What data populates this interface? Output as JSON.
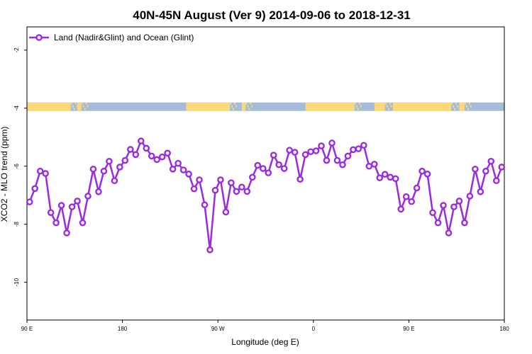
{
  "chart_data": {
    "type": "line",
    "title": "40N-45N August (Ver 9)   2014-09-06 to 2018-12-31",
    "xlabel": "Longitude (deg E)",
    "ylabel": "XCO2 - MLO trend (ppm)",
    "xlim": [
      0,
      360
    ],
    "ylim": [
      -11.3,
      -1.2
    ],
    "xticks": [
      {
        "value": 0,
        "label": "90 E"
      },
      {
        "value": 72,
        "label": "180"
      },
      {
        "value": 144,
        "label": "90 W"
      },
      {
        "value": 216,
        "label": "0"
      },
      {
        "value": 288,
        "label": "90 E"
      },
      {
        "value": 360,
        "label": "180"
      }
    ],
    "yticks": [
      {
        "value": -2,
        "label": "-2"
      },
      {
        "value": -4,
        "label": "-4"
      },
      {
        "value": -6,
        "label": "-6"
      },
      {
        "value": -8,
        "label": "-8"
      },
      {
        "value": -10,
        "label": "-10"
      }
    ],
    "legend": {
      "position": "top-left",
      "entries": [
        "Land (Nadir&Glint) and Ocean (Glint)"
      ]
    },
    "grid": false,
    "land_band": {
      "y_center": -3.95,
      "ocean_color": "#a4bcd8",
      "land_color": "#fcd878",
      "land_segments": [
        [
          0,
          33
        ],
        [
          38,
          41
        ],
        [
          120,
          153
        ],
        [
          162,
          165
        ],
        [
          210,
          247
        ],
        [
          262,
          270
        ],
        [
          276,
          320
        ],
        [
          326,
          330
        ]
      ]
    },
    "series": [
      {
        "name": "Land (Nadir&Glint) and Ocean (Glint)",
        "color": "#9a2be0",
        "x": [
          2,
          6,
          10,
          14,
          18,
          22,
          26,
          30,
          34,
          38,
          42,
          46,
          50,
          54,
          58,
          62,
          66,
          70,
          74,
          78,
          82,
          86,
          90,
          94,
          98,
          102,
          106,
          110,
          114,
          118,
          122,
          126,
          130,
          134,
          138,
          142,
          146,
          150,
          154,
          158,
          162,
          166,
          170,
          174,
          178,
          182,
          186,
          190,
          194,
          198,
          202,
          206,
          210,
          214,
          218,
          222,
          226,
          230,
          234,
          238,
          242,
          246,
          250,
          254,
          258,
          262,
          266,
          270,
          274,
          278,
          282,
          286,
          290,
          294,
          298,
          302,
          306,
          310,
          314,
          318,
          322,
          326,
          330,
          334,
          338,
          342,
          346,
          350,
          354,
          358
        ],
        "y": [
          -7.23,
          -6.77,
          -6.17,
          -6.25,
          -7.6,
          -7.95,
          -7.35,
          -8.3,
          -7.4,
          -7.2,
          -7.95,
          -7.03,
          -6.1,
          -6.88,
          -6.17,
          -5.83,
          -6.5,
          -6.03,
          -5.8,
          -5.42,
          -5.6,
          -5.13,
          -5.38,
          -5.65,
          -5.77,
          -5.68,
          -5.55,
          -6.1,
          -5.9,
          -6.13,
          -6.27,
          -6.78,
          -6.47,
          -7.33,
          -8.88,
          -6.83,
          -6.47,
          -7.58,
          -6.57,
          -6.87,
          -6.72,
          -6.87,
          -6.38,
          -5.97,
          -6.08,
          -6.23,
          -5.62,
          -5.95,
          -6.08,
          -5.45,
          -5.52,
          -6.45,
          -5.6,
          -5.5,
          -5.47,
          -5.3,
          -5.8,
          -5.2,
          -5.8,
          -5.95,
          -5.65,
          -5.43,
          -5.4,
          -5.28,
          -6.0,
          -5.93,
          -6.4,
          -6.28,
          -6.38,
          -6.43,
          -7.48,
          -7.05,
          -7.22,
          -6.75,
          -6.17,
          -6.27,
          -7.6,
          -7.95,
          -7.35,
          -8.3,
          -7.4,
          -7.2,
          -7.95,
          -7.03,
          -6.1,
          -6.88,
          -6.17,
          -5.83,
          -6.5,
          -6.03
        ]
      }
    ]
  }
}
